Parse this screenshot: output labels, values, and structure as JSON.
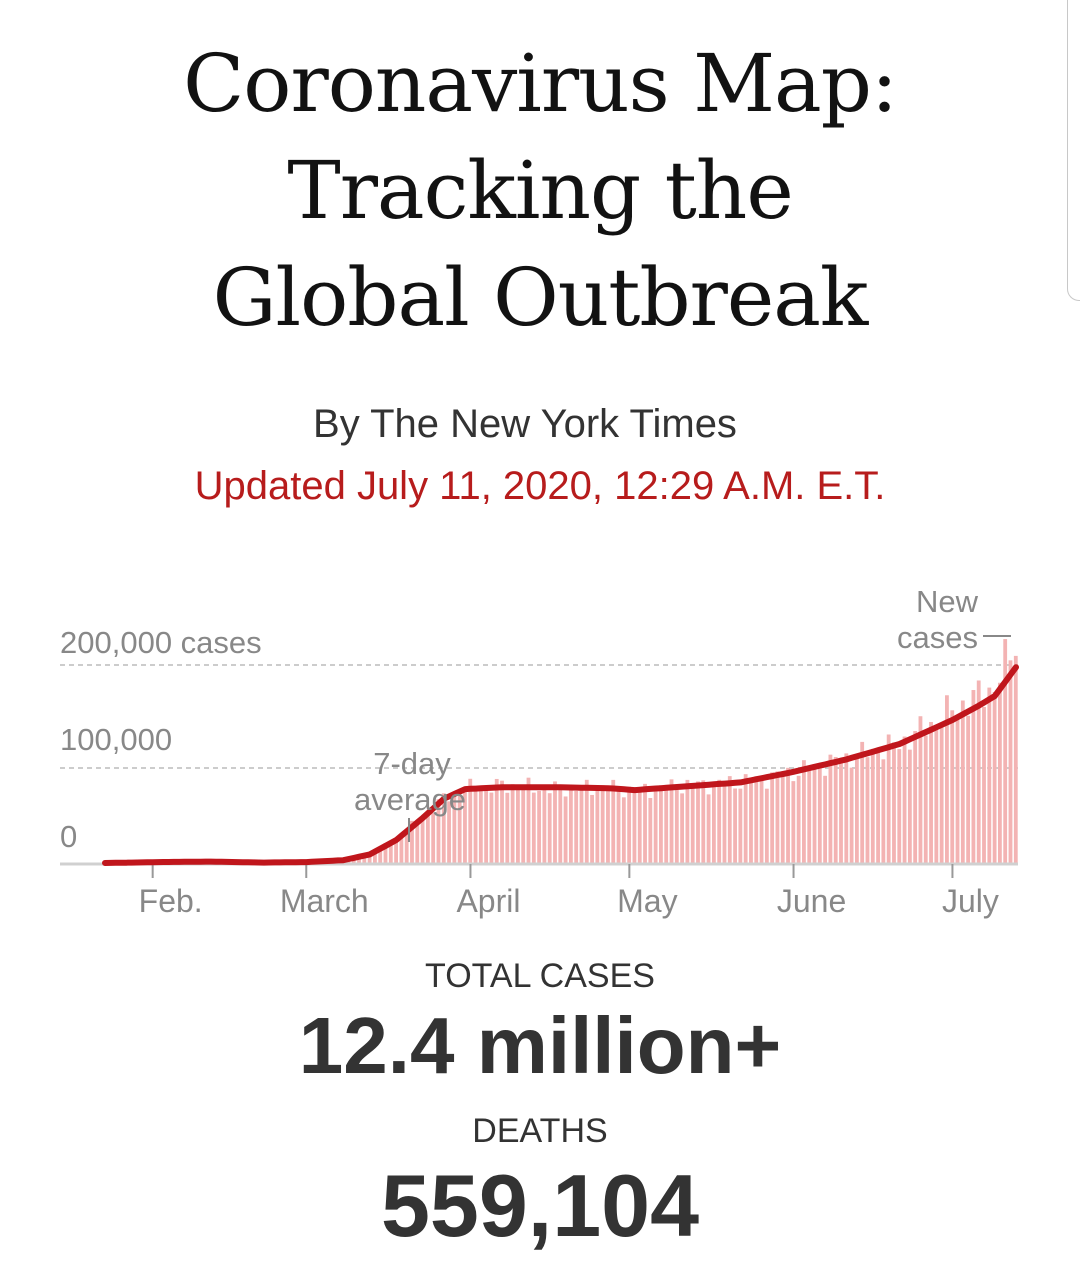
{
  "header": {
    "title_lines": [
      "Coronavirus Map:",
      "Tracking the",
      "Global Outbreak"
    ],
    "byline": "By The New York Times",
    "updated": "Updated July 11, 2020, 12:29 A.M. E.T."
  },
  "chart_data": {
    "type": "bar",
    "overlay": "line",
    "y_tick_labels": [
      "200,000 cases",
      "100,000",
      "0"
    ],
    "y_ticks": [
      200000,
      100000,
      0
    ],
    "ylim": [
      0,
      215000
    ],
    "x_tick_labels": [
      "Feb.",
      "March",
      "April",
      "May",
      "June",
      "July"
    ],
    "x_tick_days": [
      9,
      38,
      69,
      99,
      130,
      160
    ],
    "x_range_days": [
      0,
      172
    ],
    "annotations": {
      "average_line1": "7-day",
      "average_line2": "average",
      "new_line1": "New",
      "new_line2": "cases"
    },
    "series": [
      {
        "name": "New cases",
        "type": "bar",
        "color": "#f3b3b3",
        "anchors": [
          [
            0,
            2000
          ],
          [
            10,
            3000
          ],
          [
            15,
            5000
          ],
          [
            20,
            2000
          ],
          [
            30,
            1500
          ],
          [
            38,
            3000
          ],
          [
            45,
            5000
          ],
          [
            50,
            12000
          ],
          [
            55,
            25000
          ],
          [
            60,
            50000
          ],
          [
            64,
            68000
          ],
          [
            68,
            78000
          ],
          [
            75,
            82000
          ],
          [
            85,
            78000
          ],
          [
            95,
            80000
          ],
          [
            100,
            76000
          ],
          [
            110,
            82000
          ],
          [
            120,
            85000
          ],
          [
            130,
            95000
          ],
          [
            140,
            110000
          ],
          [
            150,
            125000
          ],
          [
            160,
            160000
          ],
          [
            165,
            175000
          ],
          [
            168,
            185000
          ],
          [
            172,
            230000
          ]
        ]
      },
      {
        "name": "7-day average",
        "type": "line",
        "color": "#c0161c",
        "anchors": [
          [
            0,
            1000
          ],
          [
            10,
            2000
          ],
          [
            20,
            2500
          ],
          [
            30,
            1500
          ],
          [
            38,
            2000
          ],
          [
            45,
            4000
          ],
          [
            50,
            10000
          ],
          [
            55,
            25000
          ],
          [
            60,
            48000
          ],
          [
            64,
            68000
          ],
          [
            68,
            78000
          ],
          [
            75,
            80000
          ],
          [
            85,
            80000
          ],
          [
            95,
            79000
          ],
          [
            100,
            77000
          ],
          [
            110,
            81000
          ],
          [
            120,
            85000
          ],
          [
            130,
            96000
          ],
          [
            140,
            109000
          ],
          [
            150,
            125000
          ],
          [
            160,
            150000
          ],
          [
            165,
            165000
          ],
          [
            168,
            175000
          ],
          [
            172,
            205000
          ]
        ]
      }
    ]
  },
  "stats": {
    "total_cases_label": "TOTAL CASES",
    "total_cases_value": "12.4 million+",
    "deaths_label": "DEATHS",
    "deaths_value": "559,104"
  },
  "colors": {
    "accent_red": "#b71c1c",
    "bar_pink": "#f3b3b3",
    "line_red": "#c0161c"
  }
}
